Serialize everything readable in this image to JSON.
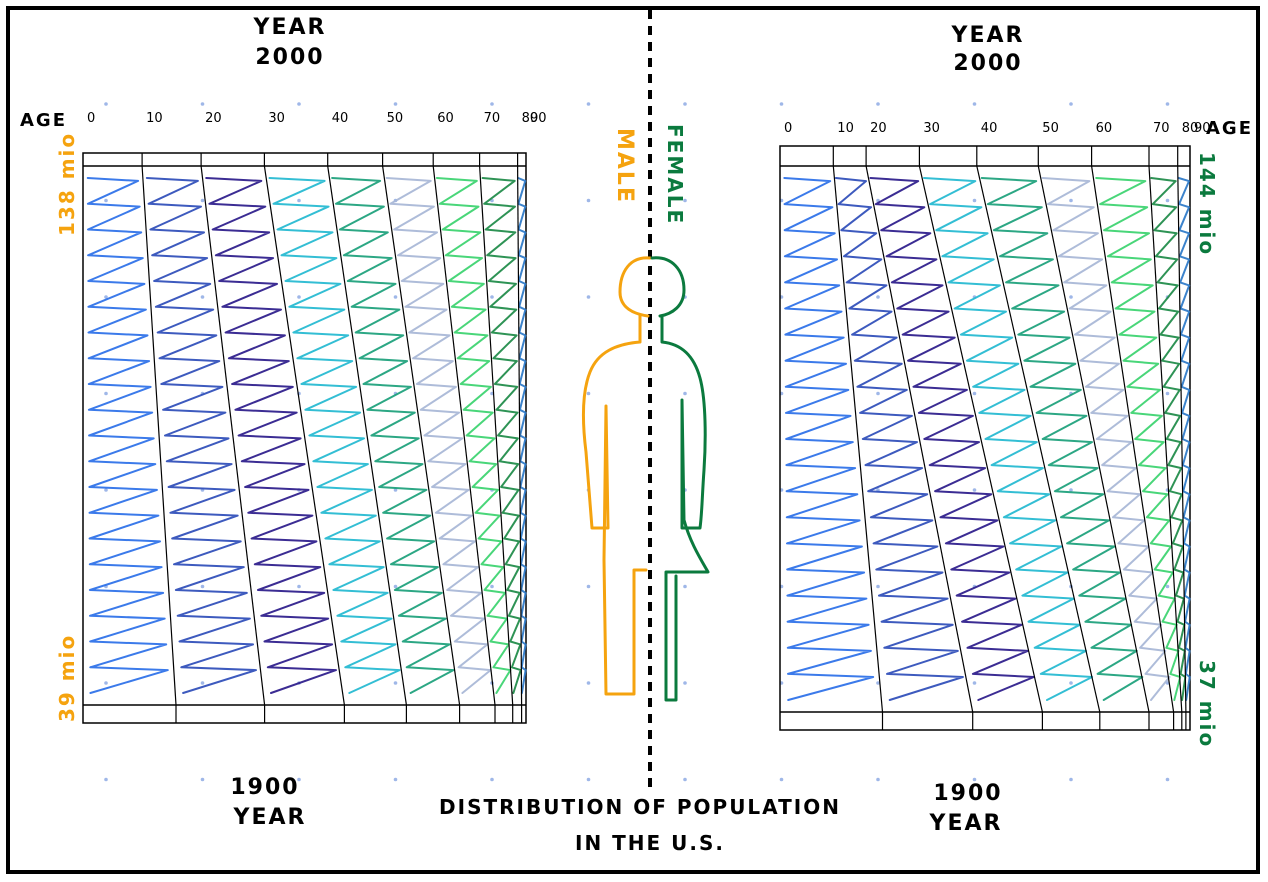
{
  "colors": {
    "ink": "#000000",
    "male": "#f5a30f",
    "female": "#0b7a3e",
    "dots": "#9fb7e8"
  },
  "title": {
    "line1": "DISTRIBUTION OF POPULATION",
    "line2": "IN THE U.S."
  },
  "divider": {
    "male_label": "MALE",
    "female_label": "FEMALE"
  },
  "chart_data": [
    {
      "type": "area",
      "panel": "male",
      "axis_label": "AGE",
      "age_ticks": [
        "0",
        "10",
        "20",
        "30",
        "40",
        "50",
        "60",
        "70",
        "80",
        "90"
      ],
      "age_boundaries_top": [
        0,
        10,
        20,
        30,
        40,
        50,
        60,
        70,
        80,
        90
      ],
      "top_year_label": [
        "YEAR",
        "2000"
      ],
      "bottom_year_label": [
        "1900",
        "YEAR"
      ],
      "top_total_label": "138 mio",
      "bottom_total_label": "39 mio",
      "years": [
        1900,
        2000
      ],
      "totals_mio": [
        39,
        138
      ],
      "series": [
        {
          "color": "#2a6fe8",
          "share_1900": 0.21,
          "share_2000": 0.14
        },
        {
          "color": "#2c4cb8",
          "share_1900": 0.2,
          "share_2000": 0.14
        },
        {
          "color": "#2a1a8a",
          "share_1900": 0.18,
          "share_2000": 0.15
        },
        {
          "color": "#22b8d0",
          "share_1900": 0.14,
          "share_2000": 0.15
        },
        {
          "color": "#1aa07a",
          "share_1900": 0.12,
          "share_2000": 0.13
        },
        {
          "color": "#a7b6d6",
          "share_1900": 0.08,
          "share_2000": 0.12
        },
        {
          "color": "#3ad36e",
          "share_1900": 0.04,
          "share_2000": 0.11
        },
        {
          "color": "#1c8a46",
          "share_1900": 0.02,
          "share_2000": 0.09
        },
        {
          "color": "#2b78c8",
          "share_1900": 0.01,
          "share_2000": 0.02
        }
      ]
    },
    {
      "type": "area",
      "panel": "female",
      "axis_label": "AGE",
      "age_ticks": [
        "0",
        "10",
        "20",
        "30",
        "40",
        "50",
        "60",
        "70",
        "80",
        "90"
      ],
      "age_boundaries_top": [
        0,
        10,
        20,
        30,
        40,
        50,
        60,
        70,
        80,
        90
      ],
      "top_year_label": [
        "YEAR",
        "2000"
      ],
      "bottom_year_label": [
        "1900",
        "YEAR"
      ],
      "top_total_label": "144 mio",
      "bottom_total_label": "37 mio",
      "years": [
        1900,
        2000
      ],
      "totals_mio": [
        37,
        144
      ],
      "series": [
        {
          "color": "#2a6fe8",
          "share_1900": 0.25,
          "share_2000": 0.13
        },
        {
          "color": "#2c4cb8",
          "share_1900": 0.22,
          "share_2000": 0.08
        },
        {
          "color": "#2a1a8a",
          "share_1900": 0.17,
          "share_2000": 0.13
        },
        {
          "color": "#22b8d0",
          "share_1900": 0.14,
          "share_2000": 0.14
        },
        {
          "color": "#1aa07a",
          "share_1900": 0.12,
          "share_2000": 0.15
        },
        {
          "color": "#a7b6d6",
          "share_1900": 0.06,
          "share_2000": 0.13
        },
        {
          "color": "#3ad36e",
          "share_1900": 0.02,
          "share_2000": 0.14
        },
        {
          "color": "#1c8a46",
          "share_1900": 0.01,
          "share_2000": 0.07
        },
        {
          "color": "#2b78c8",
          "share_1900": 0.01,
          "share_2000": 0.03
        }
      ]
    }
  ]
}
